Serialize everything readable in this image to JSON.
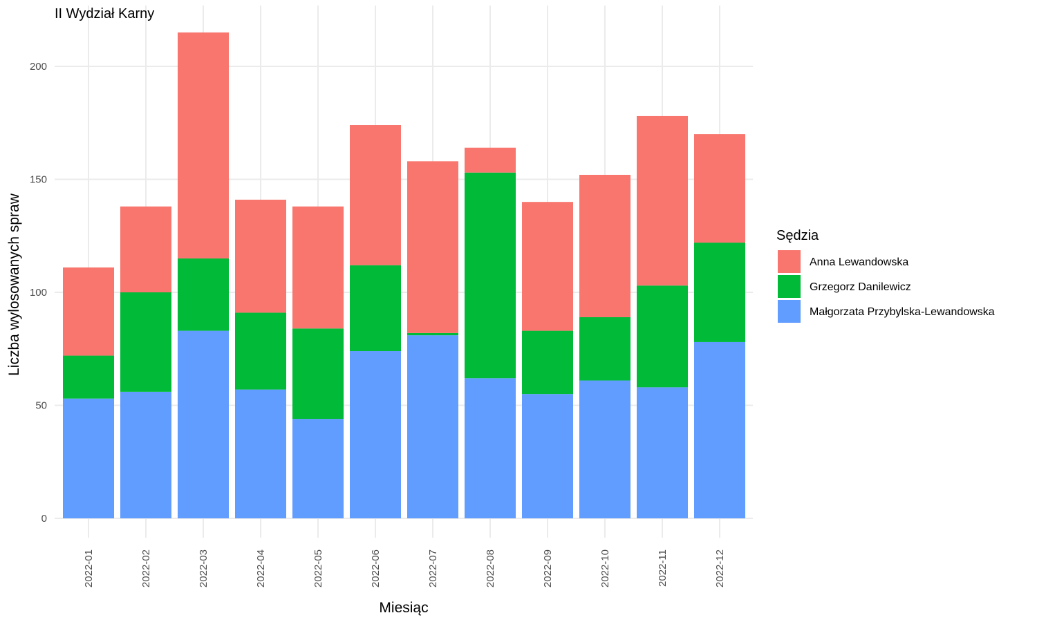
{
  "chart_data": {
    "type": "bar",
    "stacked": true,
    "title": "II Wydział Karny",
    "xlabel": "Miesiąc",
    "ylabel": "Liczba wylosowanych spraw",
    "ylim": [
      0,
      215
    ],
    "yticks": [
      0,
      50,
      100,
      150,
      200
    ],
    "categories": [
      "2022-01",
      "2022-02",
      "2022-03",
      "2022-04",
      "2022-05",
      "2022-06",
      "2022-07",
      "2022-08",
      "2022-09",
      "2022-10",
      "2022-11",
      "2022-12"
    ],
    "legend_title": "Sędzia",
    "legend_position": "right",
    "grid": true,
    "series": [
      {
        "name": "Małgorzata Przybylska-Lewandowska",
        "color": "#619CFF",
        "values": [
          53,
          56,
          83,
          57,
          44,
          74,
          81,
          62,
          55,
          61,
          58,
          78
        ]
      },
      {
        "name": "Grzegorz Danilewicz",
        "color": "#00BA38",
        "values": [
          19,
          44,
          32,
          34,
          40,
          38,
          1,
          91,
          28,
          28,
          45,
          44
        ]
      },
      {
        "name": "Anna Lewandowska",
        "color": "#F8766D",
        "values": [
          39,
          38,
          100,
          50,
          54,
          62,
          76,
          11,
          57,
          63,
          75,
          48
        ]
      }
    ],
    "legend_order": [
      "Anna Lewandowska",
      "Grzegorz Danilewicz",
      "Małgorzata Przybylska-Lewandowska"
    ]
  }
}
